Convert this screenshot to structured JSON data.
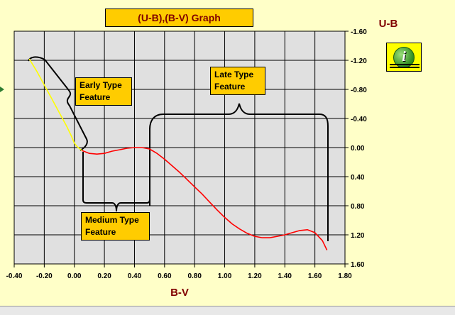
{
  "title": "(U-B),(B-V) Graph",
  "info_button": {
    "icon": "info-icon",
    "glyph": "i"
  },
  "annotations": {
    "early": "Early Type\nFeature",
    "late": "Late Type\nFeature",
    "medium": "Medium Type\nFeature"
  },
  "chart_data": {
    "type": "line",
    "xlabel": "B-V",
    "ylabel": "U-B",
    "xlim": [
      -0.4,
      1.8
    ],
    "ylim": [
      -1.6,
      1.6
    ],
    "y_inverted": true,
    "y_axis_side": "right",
    "grid": true,
    "x_ticks": [
      "-0.40",
      "-0.20",
      "0.00",
      "0.20",
      "0.40",
      "0.60",
      "0.80",
      "1.00",
      "1.20",
      "1.40",
      "1.60",
      "1.80"
    ],
    "y_ticks": [
      "-1.60",
      "-1.20",
      "-0.80",
      "-0.40",
      "0.00",
      "0.40",
      "0.80",
      "1.20",
      "1.60"
    ],
    "series": [
      {
        "color": "#ffff00",
        "x": [
          -0.3,
          -0.25,
          -0.2,
          -0.15,
          -0.1,
          -0.05,
          -0.02,
          0.0,
          0.02,
          0.05
        ],
        "y": [
          -1.22,
          -1.05,
          -0.86,
          -0.67,
          -0.48,
          -0.29,
          -0.16,
          -0.06,
          -0.01,
          0.04
        ]
      },
      {
        "color": "#ff0000",
        "x": [
          0.05,
          0.1,
          0.15,
          0.2,
          0.25,
          0.3,
          0.35,
          0.4,
          0.45,
          0.5,
          0.55,
          0.6,
          0.65,
          0.7,
          0.75,
          0.8,
          0.85,
          0.9,
          0.95,
          1.0,
          1.05,
          1.1,
          1.15,
          1.2,
          1.25,
          1.3,
          1.35,
          1.4,
          1.45,
          1.5,
          1.55,
          1.6,
          1.65,
          1.68
        ],
        "y": [
          0.04,
          0.08,
          0.09,
          0.08,
          0.05,
          0.03,
          0.01,
          0.0,
          0.0,
          0.02,
          0.08,
          0.16,
          0.25,
          0.34,
          0.44,
          0.54,
          0.64,
          0.75,
          0.86,
          0.96,
          1.05,
          1.12,
          1.18,
          1.22,
          1.24,
          1.24,
          1.22,
          1.2,
          1.17,
          1.14,
          1.13,
          1.17,
          1.28,
          1.41
        ]
      }
    ]
  }
}
